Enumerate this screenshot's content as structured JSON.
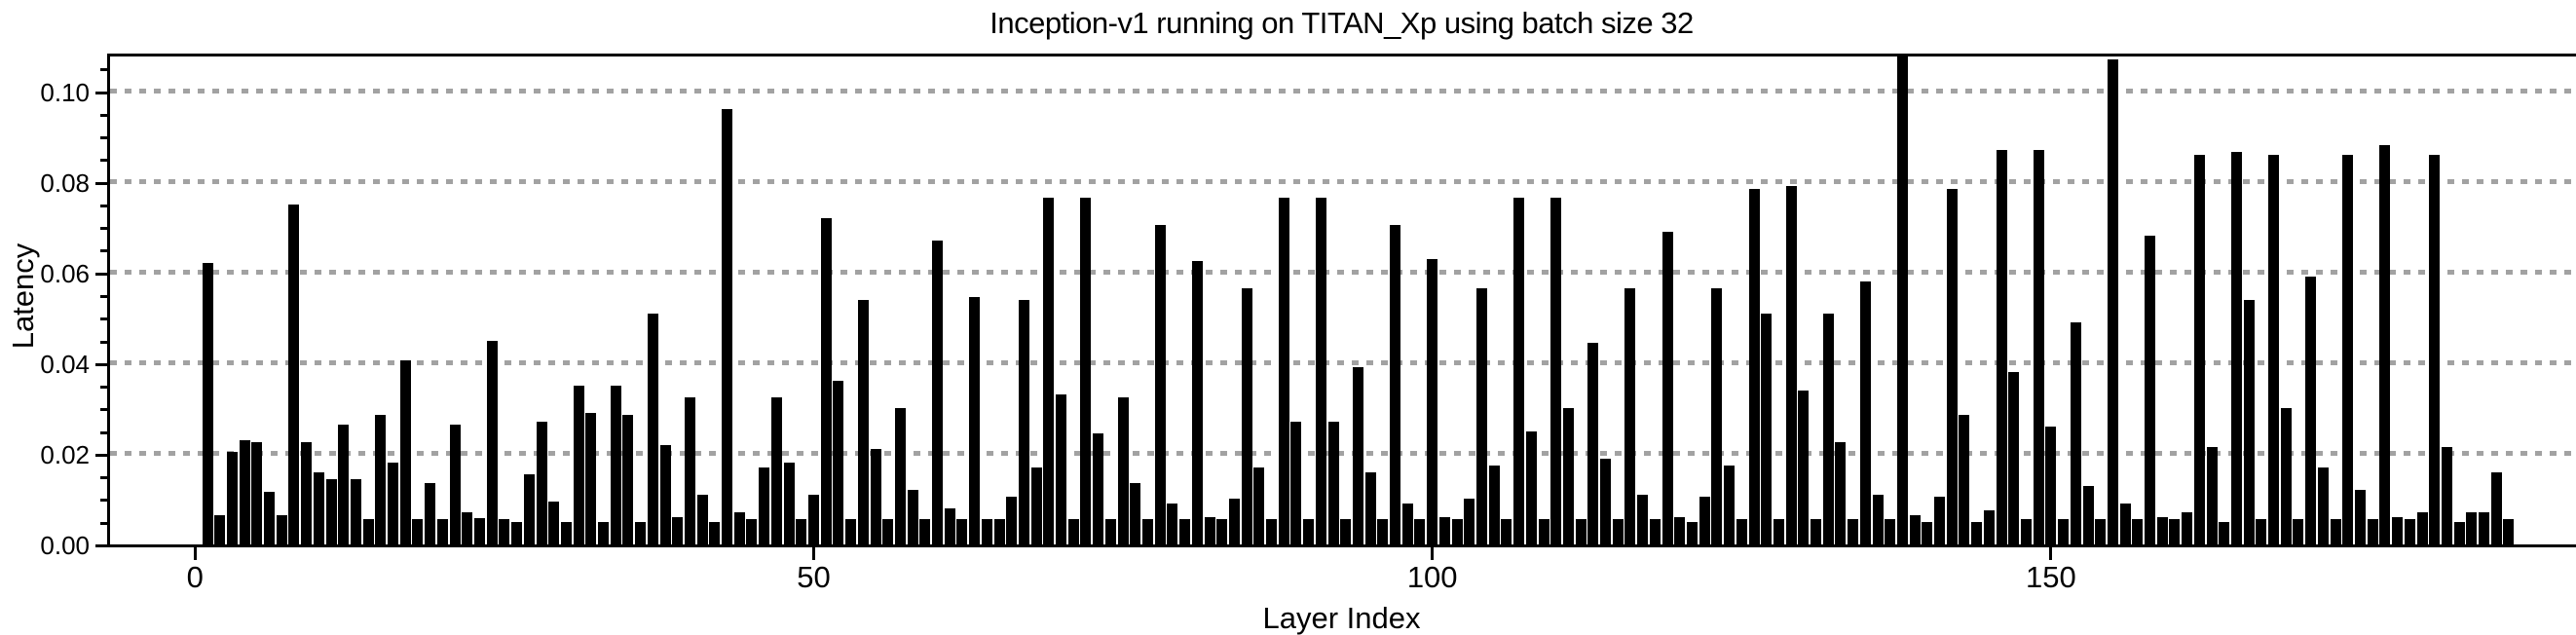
{
  "chart_data": {
    "type": "bar",
    "title": "Inception-v1 running on TITAN_Xp using batch size 32",
    "xlabel": "Layer Index",
    "ylabel": "Latency",
    "bar_color": "#000000",
    "grid_color": "#a2a2a2",
    "grid": "horizontal-dashed",
    "legend": "none",
    "x_start_index": 1,
    "x_ticks": [
      0,
      50,
      100,
      150
    ],
    "y_ticks": [
      "0.00",
      "0.02",
      "0.04",
      "0.06",
      "0.08",
      "0.10"
    ],
    "y_tick_values": [
      0.0,
      0.02,
      0.04,
      0.06,
      0.08,
      0.1
    ],
    "y_minor_tick_step": 0.005,
    "ylim": [
      0,
      0.1077
    ],
    "values": [
      0.062,
      0.0065,
      0.0205,
      0.023,
      0.0225,
      0.0115,
      0.0065,
      0.075,
      0.0225,
      0.016,
      0.0145,
      0.0265,
      0.0145,
      0.0055,
      0.0285,
      0.018,
      0.0405,
      0.0055,
      0.0135,
      0.0055,
      0.0265,
      0.007,
      0.0057,
      0.045,
      0.0055,
      0.005,
      0.0155,
      0.027,
      0.0095,
      0.005,
      0.035,
      0.029,
      0.005,
      0.035,
      0.0285,
      0.005,
      0.051,
      0.022,
      0.006,
      0.0325,
      0.011,
      0.005,
      0.096,
      0.007,
      0.0055,
      0.017,
      0.0325,
      0.018,
      0.0055,
      0.011,
      0.072,
      0.036,
      0.0055,
      0.054,
      0.021,
      0.0055,
      0.03,
      0.012,
      0.0055,
      0.067,
      0.008,
      0.0055,
      0.0545,
      0.0055,
      0.0055,
      0.0105,
      0.054,
      0.017,
      0.0765,
      0.033,
      0.0055,
      0.0765,
      0.0245,
      0.0055,
      0.0325,
      0.0135,
      0.0055,
      0.0705,
      0.009,
      0.0055,
      0.0625,
      0.006,
      0.0055,
      0.01,
      0.0565,
      0.017,
      0.0055,
      0.0765,
      0.027,
      0.0055,
      0.0765,
      0.027,
      0.0055,
      0.039,
      0.016,
      0.0055,
      0.0705,
      0.009,
      0.0055,
      0.063,
      0.006,
      0.0055,
      0.01,
      0.0565,
      0.0175,
      0.0055,
      0.0765,
      0.025,
      0.0055,
      0.0765,
      0.03,
      0.0055,
      0.0445,
      0.019,
      0.0055,
      0.0565,
      0.011,
      0.0055,
      0.069,
      0.006,
      0.005,
      0.0105,
      0.0565,
      0.0175,
      0.0055,
      0.0785,
      0.051,
      0.0055,
      0.079,
      0.034,
      0.0055,
      0.051,
      0.0225,
      0.0055,
      0.058,
      0.011,
      0.0055,
      0.11,
      0.0065,
      0.005,
      0.0105,
      0.0785,
      0.0285,
      0.005,
      0.0075,
      0.087,
      0.038,
      0.0055,
      0.087,
      0.026,
      0.0055,
      0.049,
      0.013,
      0.0055,
      0.107,
      0.009,
      0.0055,
      0.068,
      0.006,
      0.0055,
      0.007,
      0.086,
      0.0215,
      0.005,
      0.0865,
      0.054,
      0.0055,
      0.086,
      0.03,
      0.0055,
      0.059,
      0.017,
      0.0055,
      0.086,
      0.012,
      0.0055,
      0.088,
      0.006,
      0.0055,
      0.007,
      0.086,
      0.0215,
      0.005,
      0.007,
      0.007,
      0.016,
      0.0055
    ]
  }
}
